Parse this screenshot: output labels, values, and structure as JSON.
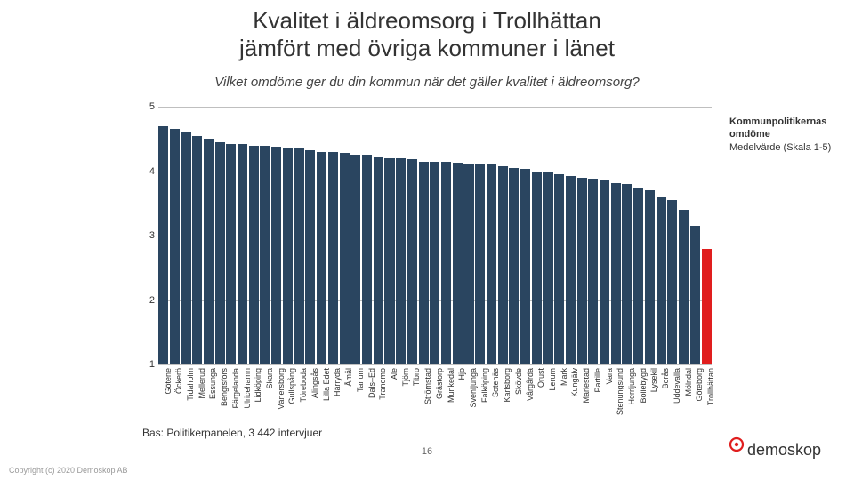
{
  "title_line1": "Kvalitet i äldreomsorg i Trollhättan",
  "title_line2": "jämfört med övriga kommuner i länet",
  "subtitle": "Vilket omdöme ger du din kommun när det gäller kvalitet i äldreomsorg?",
  "legend": {
    "title": "Kommunpolitikernas omdöme",
    "sub": "Medelvärde (Skala 1-5)"
  },
  "base_text": "Bas: Politikerpanelen, 3 442 intervjuer",
  "page_number": "16",
  "copyright": "Copyright (c)  2020  Demoskop AB",
  "logo_text": "demoskop",
  "chart": {
    "type": "bar",
    "ymin": 1,
    "ymax": 5,
    "ytick_step": 1,
    "bar_color": "#2a4560",
    "highlight_color": "#e01e1e",
    "grid_color": "#bfbfbf",
    "background_color": "#ffffff",
    "title_fontsize": 26,
    "subtitle_fontsize": 15,
    "label_fontsize": 9,
    "ytick_fontsize": 11,
    "highlight_category": "Trollhättan",
    "categories": [
      "Götene",
      "Öckerö",
      "Tidaholm",
      "Mellerud",
      "Essunga",
      "Bengtsfors",
      "Färgelanda",
      "Ulricehamn",
      "Lidköping",
      "Skara",
      "Vänersborg",
      "Gullspång",
      "Töreboda",
      "Alingsås",
      "Lilla Edet",
      "Härryda",
      "Åmål",
      "Tanum",
      "Dals–Ed",
      "Tranemo",
      "Ale",
      "Tjörn",
      "Tibro",
      "Strömstad",
      "Grästorp",
      "Munkedal",
      "Hjo",
      "Svenljunga",
      "Falköping",
      "Sotenäs",
      "Karlsborg",
      "Skövde",
      "Vårgårda",
      "Orust",
      "Lerum",
      "Mark",
      "Kungälv",
      "Mariestad",
      "Partille",
      "Vara",
      "Stenungsund",
      "Herrljunga",
      "Bollebygd",
      "Lysekil",
      "Borås",
      "Uddevalla",
      "Mölndal",
      "Göteborg",
      "Trollhättan"
    ],
    "values": [
      4.7,
      4.65,
      4.6,
      4.55,
      4.5,
      4.45,
      4.42,
      4.42,
      4.4,
      4.4,
      4.38,
      4.35,
      4.35,
      4.32,
      4.3,
      4.3,
      4.28,
      4.25,
      4.25,
      4.22,
      4.2,
      4.2,
      4.18,
      4.15,
      4.15,
      4.14,
      4.13,
      4.12,
      4.1,
      4.1,
      4.08,
      4.05,
      4.03,
      4.0,
      3.98,
      3.95,
      3.92,
      3.9,
      3.88,
      3.85,
      3.82,
      3.8,
      3.75,
      3.7,
      3.6,
      3.55,
      3.4,
      3.15,
      2.8
    ]
  }
}
